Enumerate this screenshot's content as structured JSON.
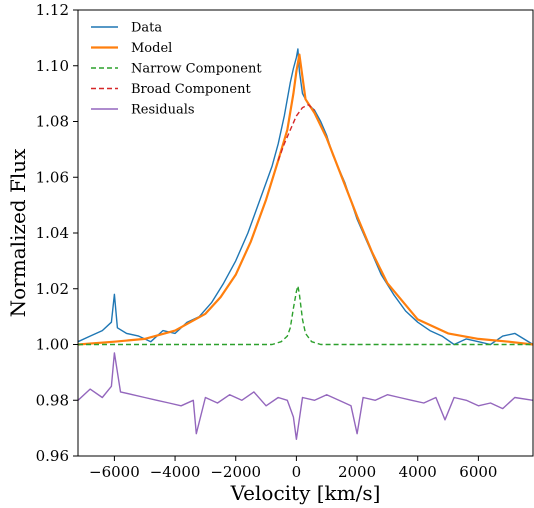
{
  "chart_data": {
    "type": "line",
    "title": "",
    "xlabel": "Velocity [km/s]",
    "ylabel": "Normalized Flux",
    "xlim": [
      -7200,
      7800
    ],
    "ylim": [
      0.96,
      1.12
    ],
    "x_ticks": [
      -6000,
      -4000,
      -2000,
      0,
      2000,
      4000,
      6000
    ],
    "x_tick_labels": [
      "−6000",
      "−4000",
      "−2000",
      "0",
      "2000",
      "4000",
      "6000"
    ],
    "y_ticks": [
      0.96,
      0.98,
      1.0,
      1.02,
      1.04,
      1.06,
      1.08,
      1.1,
      1.12
    ],
    "y_tick_labels": [
      "0.96",
      "0.98",
      "1.00",
      "1.02",
      "1.04",
      "1.06",
      "1.08",
      "1.10",
      "1.12"
    ],
    "grid": false,
    "legend_position": "top-left",
    "series": [
      {
        "name": "Data",
        "color": "#1f77b4",
        "style": "solid",
        "x": [
          -7200,
          -6800,
          -6400,
          -6100,
          -6000,
          -5900,
          -5600,
          -5200,
          -4800,
          -4400,
          -4000,
          -3600,
          -3200,
          -2800,
          -2400,
          -2000,
          -1600,
          -1200,
          -1000,
          -800,
          -600,
          -400,
          -200,
          -100,
          0,
          50,
          100,
          200,
          400,
          600,
          800,
          1000,
          1200,
          1600,
          2000,
          2400,
          2800,
          3200,
          3600,
          4000,
          4400,
          4800,
          5200,
          5600,
          6000,
          6400,
          6800,
          7200,
          7800
        ],
        "y": [
          1.001,
          1.003,
          1.005,
          1.008,
          1.018,
          1.006,
          1.004,
          1.003,
          1.001,
          1.005,
          1.004,
          1.008,
          1.01,
          1.015,
          1.022,
          1.03,
          1.04,
          1.052,
          1.058,
          1.064,
          1.072,
          1.082,
          1.094,
          1.099,
          1.103,
          1.106,
          1.098,
          1.09,
          1.086,
          1.084,
          1.08,
          1.075,
          1.068,
          1.058,
          1.045,
          1.035,
          1.025,
          1.018,
          1.012,
          1.008,
          1.005,
          1.003,
          1.0,
          1.002,
          1.001,
          1.0,
          1.003,
          1.004,
          1.0
        ]
      },
      {
        "name": "Model",
        "color": "#ff7f0e",
        "style": "solid",
        "x": [
          -7200,
          -6000,
          -5000,
          -4000,
          -3000,
          -2500,
          -2000,
          -1500,
          -1000,
          -600,
          -300,
          -100,
          0,
          100,
          300,
          600,
          1000,
          1500,
          2000,
          2500,
          3000,
          4000,
          5000,
          6000,
          7000,
          7800
        ],
        "y": [
          1.0,
          1.001,
          1.002,
          1.005,
          1.011,
          1.017,
          1.025,
          1.037,
          1.052,
          1.066,
          1.077,
          1.09,
          1.098,
          1.104,
          1.088,
          1.083,
          1.074,
          1.06,
          1.046,
          1.033,
          1.022,
          1.009,
          1.004,
          1.002,
          1.001,
          1.0
        ]
      },
      {
        "name": "Narrow Component",
        "color": "#2ca02c",
        "style": "dashed",
        "x": [
          -7200,
          -800,
          -500,
          -300,
          -200,
          -100,
          0,
          50,
          100,
          200,
          300,
          500,
          800,
          7800
        ],
        "y": [
          1.0,
          1.0,
          1.001,
          1.003,
          1.006,
          1.013,
          1.019,
          1.021,
          1.018,
          1.009,
          1.004,
          1.001,
          1.0,
          1.0
        ]
      },
      {
        "name": "Broad Component",
        "color": "#d62728",
        "style": "dashed",
        "x": [
          -600,
          -400,
          -200,
          0,
          200,
          400,
          600
        ],
        "y": [
          1.066,
          1.072,
          1.077,
          1.082,
          1.085,
          1.086,
          1.084
        ]
      },
      {
        "name": "Residuals",
        "color": "#9467bd",
        "style": "solid",
        "x": [
          -7200,
          -6800,
          -6400,
          -6100,
          -6000,
          -5800,
          -5400,
          -5000,
          -4600,
          -4200,
          -3800,
          -3400,
          -3300,
          -3000,
          -2600,
          -2200,
          -1800,
          -1400,
          -1000,
          -600,
          -300,
          -100,
          0,
          200,
          600,
          1000,
          1400,
          1800,
          2000,
          2200,
          2600,
          3000,
          3400,
          3800,
          4200,
          4600,
          4900,
          5200,
          5600,
          6000,
          6400,
          6800,
          7200,
          7800
        ],
        "y": [
          0.98,
          0.984,
          0.981,
          0.985,
          0.997,
          0.983,
          0.982,
          0.981,
          0.98,
          0.979,
          0.978,
          0.98,
          0.968,
          0.981,
          0.979,
          0.982,
          0.98,
          0.983,
          0.978,
          0.981,
          0.98,
          0.974,
          0.966,
          0.981,
          0.98,
          0.982,
          0.98,
          0.978,
          0.968,
          0.981,
          0.98,
          0.982,
          0.981,
          0.98,
          0.979,
          0.981,
          0.973,
          0.981,
          0.98,
          0.978,
          0.979,
          0.977,
          0.981,
          0.98
        ]
      }
    ]
  }
}
